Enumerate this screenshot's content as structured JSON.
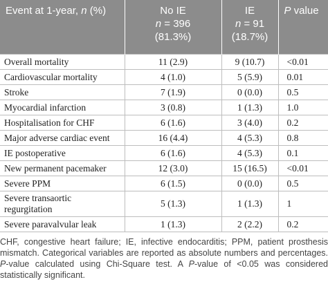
{
  "table": {
    "header": [
      [
        [
          "Event at 1-year, ",
          {
            "text": "n",
            "italic": true
          },
          " (%)"
        ]
      ],
      [
        [
          "No IE"
        ],
        [
          {
            "text": "n",
            "italic": true
          },
          " = 396"
        ],
        [
          "(81.3%)"
        ]
      ],
      [
        [
          "IE"
        ],
        [
          {
            "text": "n",
            "italic": true
          },
          " = 91"
        ],
        [
          "(18.7%)"
        ]
      ],
      [
        [
          {
            "text": "P",
            "italic": true
          },
          " value"
        ]
      ]
    ],
    "rows": [
      [
        "Overall mortality",
        "11 (2.9)",
        "9 (10.7)",
        "<0.01"
      ],
      [
        "Cardiovascular mortality",
        "4 (1.0)",
        "5 (5.9)",
        "0.01"
      ],
      [
        "Stroke",
        "7 (1.9)",
        "0 (0.0)",
        "0.5"
      ],
      [
        "Myocardial infarction",
        "3 (0.8)",
        "1 (1.3)",
        "1.0"
      ],
      [
        "Hospitalisation for CHF",
        "6 (1.6)",
        "3 (4.0)",
        "0.2"
      ],
      [
        "Major adverse cardiac event",
        "16 (4.4)",
        "4 (5.3)",
        "0.8"
      ],
      [
        "IE postoperative",
        "6 (1.6)",
        "4 (5.3)",
        "0.1"
      ],
      [
        "New permanent pacemaker",
        "12 (3.0)",
        "15 (16.5)",
        "<0.01"
      ],
      [
        "Severe PPM",
        "6 (1.5)",
        "0 (0.0)",
        "0.5"
      ],
      [
        "Severe transaortic regurgitation",
        "5 (1.3)",
        "1 (1.3)",
        "1"
      ],
      [
        "Severe paravalvular leak",
        "1 (1.3)",
        "2 (2.2)",
        "0.2"
      ]
    ]
  },
  "footnote": [
    "CHF, congestive heart failure; IE, infective endocarditis; PPM, patient prosthesis mismatch. Categorical variables are reported as absolute numbers and percentages. ",
    {
      "text": "P",
      "italic": true
    },
    "-value calculated using Chi-Square test. A ",
    {
      "text": "P",
      "italic": true
    },
    "-value of <0.05 was considered statistically significant."
  ]
}
